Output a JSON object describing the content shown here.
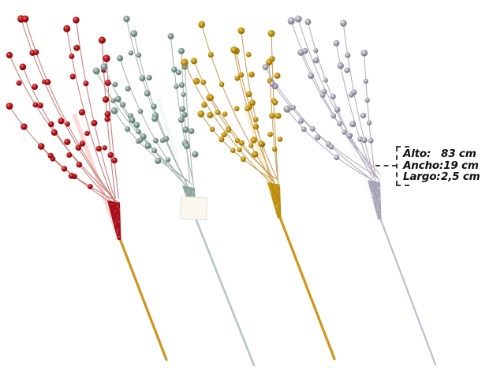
{
  "product_photo": {
    "background": "#ffffff",
    "description": "four-glitter-berry-branches",
    "callout": {
      "text_color": "#101010",
      "dash_color": "#3d3d3d",
      "rows": [
        {
          "label": "Alto:",
          "value": "83 cm"
        },
        {
          "label": "Ancho:",
          "value": "19 cm"
        },
        {
          "label": "Largo:",
          "value": "2,5 cm"
        }
      ]
    },
    "branches": [
      {
        "name": "red-glitter-berry-branch",
        "berry": "#b21118",
        "berry_dark": "#6d050a",
        "berry_light": "#ee7168",
        "twig": "#c5827c",
        "cone": "#a90e1b",
        "stick": "#cf9420"
      },
      {
        "name": "sage-silver-glitter-berry-branch",
        "berry": "#7f9b91",
        "berry_dark": "#47635b",
        "berry_light": "#d8e6df",
        "twig": "#abb7b1",
        "cone": "#8ea69b",
        "stick": "#bdc6ca",
        "tag": {
          "fill": "#faf7f1",
          "border": "#e4dfd5"
        }
      },
      {
        "name": "gold-glitter-berry-branch",
        "berry": "#c3900c",
        "berry_dark": "#7d5a04",
        "berry_light": "#eed068",
        "twig": "#c9a35e",
        "cone": "#bc8d0e",
        "stick": "#d2951a"
      },
      {
        "name": "silver-glitter-berry-branch",
        "berry": "#a7a3b2",
        "berry_dark": "#676372",
        "berry_light": "#eceaf2",
        "twig": "#b5b0c0",
        "cone": "#a9a4b6",
        "stick": "#c3bacf"
      }
    ]
  }
}
